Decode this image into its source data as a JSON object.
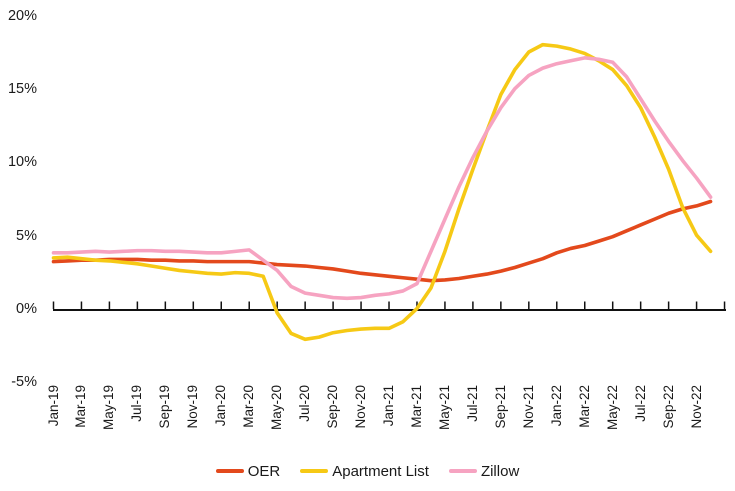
{
  "chart_data": {
    "type": "line",
    "title": "",
    "xlabel": "",
    "ylabel": "",
    "ylim": [
      -5,
      20
    ],
    "grid": false,
    "legend_position": "bottom",
    "y_ticks": {
      "values": [
        20,
        15,
        10,
        5,
        0,
        -5
      ],
      "labels": [
        "20%",
        "15%",
        "10%",
        "5%",
        "0%",
        "-5%"
      ]
    },
    "x_tick_labels": [
      "Jan-19",
      "Mar-19",
      "May-19",
      "Jul-19",
      "Sep-19",
      "Nov-19",
      "Jan-20",
      "Mar-20",
      "May-20",
      "Jul-20",
      "Sep-20",
      "Nov-20",
      "Jan-21",
      "Mar-21",
      "May-21",
      "Jul-21",
      "Sep-21",
      "Nov-21",
      "Jan-22",
      "Mar-22",
      "May-22",
      "Jul-22",
      "Sep-22",
      "Nov-22"
    ],
    "x": [
      "Jan-19",
      "Feb-19",
      "Mar-19",
      "Apr-19",
      "May-19",
      "Jun-19",
      "Jul-19",
      "Aug-19",
      "Sep-19",
      "Oct-19",
      "Nov-19",
      "Dec-19",
      "Jan-20",
      "Feb-20",
      "Mar-20",
      "Apr-20",
      "May-20",
      "Jun-20",
      "Jul-20",
      "Aug-20",
      "Sep-20",
      "Oct-20",
      "Nov-20",
      "Dec-20",
      "Jan-21",
      "Feb-21",
      "Mar-21",
      "Apr-21",
      "May-21",
      "Jun-21",
      "Jul-21",
      "Aug-21",
      "Sep-21",
      "Oct-21",
      "Nov-21",
      "Dec-21",
      "Jan-22",
      "Feb-22",
      "Mar-22",
      "Apr-22",
      "May-22",
      "Jun-22",
      "Jul-22",
      "Aug-22",
      "Sep-22",
      "Oct-22",
      "Nov-22",
      "Dec-22"
    ],
    "series": [
      {
        "name": "OER",
        "color": "#E3491C",
        "values": [
          3.3,
          3.35,
          3.4,
          3.4,
          3.45,
          3.45,
          3.45,
          3.4,
          3.4,
          3.35,
          3.35,
          3.3,
          3.3,
          3.3,
          3.3,
          3.2,
          3.1,
          3.05,
          3.0,
          2.9,
          2.8,
          2.65,
          2.5,
          2.4,
          2.3,
          2.2,
          2.1,
          2.0,
          2.05,
          2.15,
          2.3,
          2.45,
          2.65,
          2.9,
          3.2,
          3.5,
          3.9,
          4.2,
          4.4,
          4.7,
          5.0,
          5.4,
          5.8,
          6.2,
          6.6,
          6.9,
          7.1,
          7.4
        ]
      },
      {
        "name": "Apartment List",
        "color": "#F6C915",
        "values": [
          3.55,
          3.6,
          3.5,
          3.4,
          3.35,
          3.25,
          3.15,
          3.0,
          2.85,
          2.7,
          2.6,
          2.5,
          2.45,
          2.55,
          2.5,
          2.3,
          -0.2,
          -1.6,
          -2.0,
          -1.85,
          -1.55,
          -1.4,
          -1.3,
          -1.25,
          -1.25,
          -0.8,
          0.1,
          1.5,
          4.0,
          6.9,
          9.6,
          12.2,
          14.7,
          16.4,
          17.6,
          18.1,
          18.0,
          17.8,
          17.5,
          17.0,
          16.4,
          15.3,
          13.8,
          11.8,
          9.6,
          7.0,
          5.1,
          4.0
        ]
      },
      {
        "name": "Zillow",
        "color": "#F6A3C1",
        "values": [
          3.9,
          3.9,
          3.95,
          4.0,
          3.95,
          4.0,
          4.05,
          4.05,
          4.0,
          4.0,
          3.95,
          3.9,
          3.9,
          4.0,
          4.1,
          3.4,
          2.7,
          1.6,
          1.15,
          1.0,
          0.85,
          0.8,
          0.85,
          1.0,
          1.1,
          1.3,
          1.8,
          4.0,
          6.2,
          8.4,
          10.4,
          12.2,
          13.8,
          15.1,
          16.0,
          16.5,
          16.8,
          17.0,
          17.2,
          17.1,
          16.9,
          15.9,
          14.4,
          12.9,
          11.5,
          10.2,
          9.0,
          7.7
        ]
      }
    ]
  },
  "colors": {
    "axis": "#111111",
    "text": "#1a1a1a",
    "background": "#ffffff"
  }
}
